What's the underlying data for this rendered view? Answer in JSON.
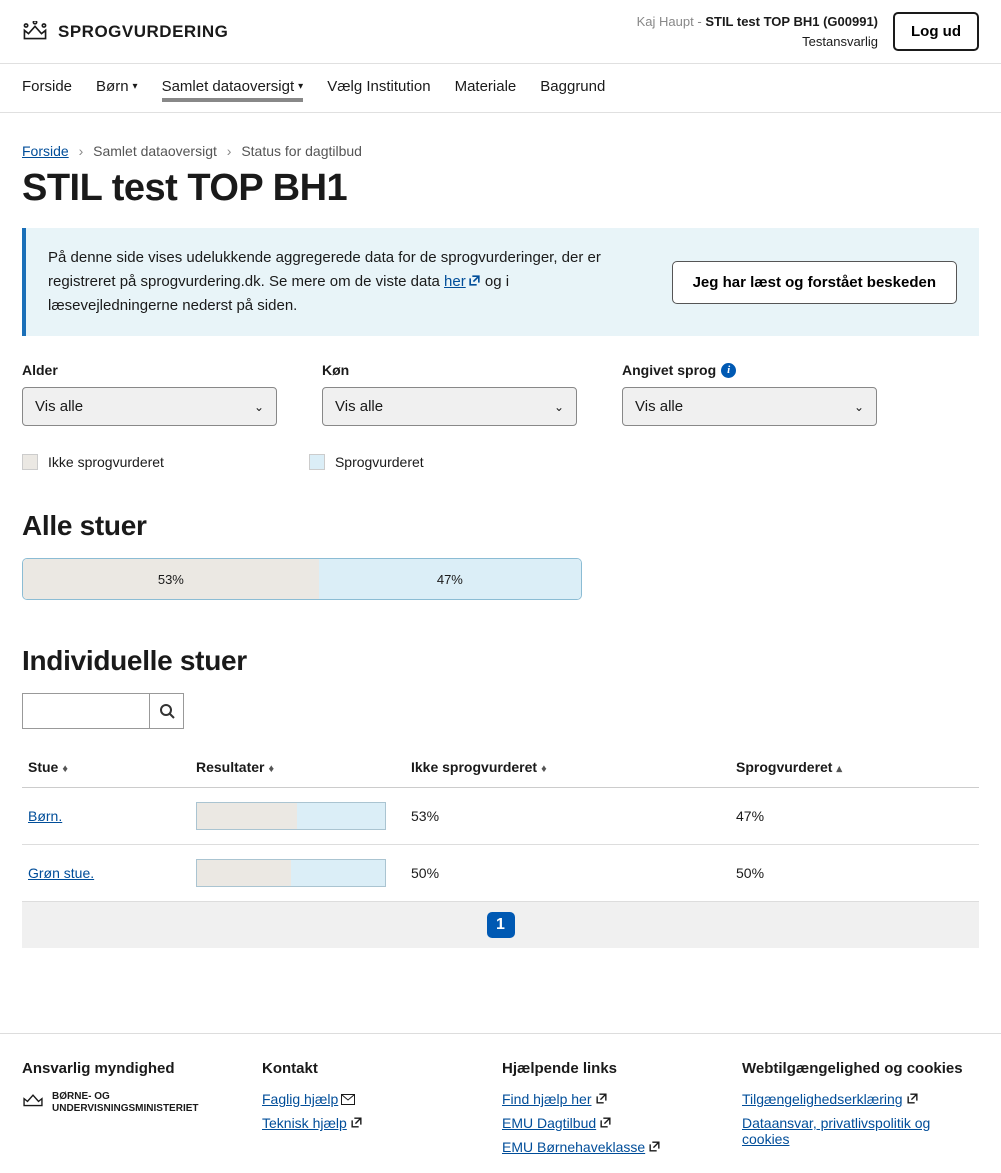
{
  "brand": "SPROGVURDERING",
  "user": {
    "name": "Kaj Haupt",
    "sep": "-",
    "org": "STIL test TOP BH1 (G00991)",
    "role": "Testansvarlig"
  },
  "logout": "Log ud",
  "nav": {
    "forside": "Forside",
    "born": "Børn",
    "samlet": "Samlet dataoversigt",
    "vaelg": "Vælg Institution",
    "materiale": "Materiale",
    "baggrund": "Baggrund"
  },
  "breadcrumb": {
    "forside": "Forside",
    "samlet": "Samlet dataoversigt",
    "status": "Status for dagtilbud"
  },
  "page_title": "STIL test TOP BH1",
  "info": {
    "text_pre": "På denne side vises udelukkende aggregerede data for de sprogvurderinger, der er registreret på sprogvurdering.dk. Se mere om de viste data ",
    "link": "her",
    "text_post": " og i læsevejledningerne nederst på siden.",
    "button": "Jeg har læst og forstået beskeden"
  },
  "filters": {
    "alder": {
      "label": "Alder",
      "value": "Vis alle"
    },
    "kon": {
      "label": "Køn",
      "value": "Vis alle"
    },
    "sprog": {
      "label": "Angivet sprog",
      "value": "Vis alle"
    }
  },
  "legend": {
    "not": "Ikke sprogvurderet",
    "yes": "Sprogvurderet"
  },
  "legend_colors": {
    "not": "#ebe8e3",
    "yes": "#dbeef7"
  },
  "alle_stuer": {
    "heading": "Alle stuer",
    "not_pct": 53,
    "yes_pct": 47,
    "not_label": "53%",
    "yes_label": "47%"
  },
  "individuelle": {
    "heading": "Individuelle stuer"
  },
  "table": {
    "headers": {
      "stue": "Stue",
      "resultater": "Resultater",
      "not": "Ikke sprogvurderet",
      "yes": "Sprogvurderet"
    },
    "rows": [
      {
        "stue": "Børn.",
        "not_pct": 53,
        "yes_pct": 47,
        "not_label": "53%",
        "yes_label": "47%"
      },
      {
        "stue": "Grøn stue.",
        "not_pct": 50,
        "yes_pct": 50,
        "not_label": "50%",
        "yes_label": "50%"
      }
    ]
  },
  "pagination": {
    "current": "1"
  },
  "footer": {
    "authority_h": "Ansvarlig myndighed",
    "ministry_l1": "BØRNE- OG",
    "ministry_l2": "UNDERVISNINGSMINISTERIET",
    "kontakt_h": "Kontakt",
    "faglig": "Faglig hjælp",
    "teknisk": "Teknisk hjælp",
    "links_h": "Hjælpende links",
    "find": "Find hjælp her",
    "emu_dag": "EMU Dagtilbud",
    "emu_bh": "EMU Børnehaveklasse",
    "web_h": "Webtilgængelighed og cookies",
    "tilg": "Tilgængelighedserklæring",
    "data": "Dataansvar, privatlivspolitik og cookies"
  }
}
